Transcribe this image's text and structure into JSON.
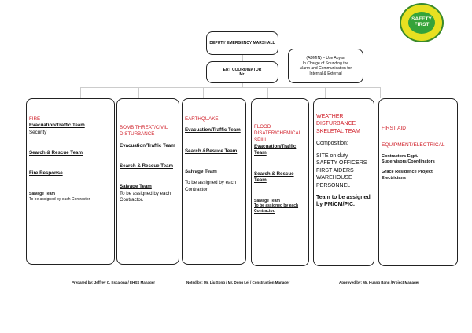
{
  "logo": {
    "text": "SAFETY FIRST",
    "ring": "Your First Priority",
    "colors": {
      "ring": "#e8e021",
      "center": "#35a33a"
    }
  },
  "top": {
    "deputy": "DEPUTY EMERGENCY MARSHALL",
    "ert_title": "ERT COORDINATOR",
    "ert_name": "Mr.",
    "admin": [
      "(ADMIN) – Use Abyan",
      "In Charge of Sounding the",
      "Alarm and Communication for",
      "Internal & External"
    ]
  },
  "accent": "#d0202a",
  "columns": [
    {
      "title": "FIRE",
      "items": [
        "Evacuation/Traffic Team",
        "Security",
        "Search & Rescue Team",
        "Fire Response",
        "Salvage Team",
        "To be assigned by each Contractor"
      ]
    },
    {
      "title": "BOMB THREAT/CIVIL DISTURBANCE",
      "items": [
        "Evacuation/Traffic Team",
        "Search & Rescue Team",
        "Salvage Team",
        "To be assigned by each Contractor."
      ]
    },
    {
      "title": "EARTHQUAKE",
      "items": [
        "Evacuation/Traffic Team",
        "Search &Resuce Team",
        "Salvage Team",
        "To be assigned by each Contractor."
      ]
    },
    {
      "title": "FLOOD DISATER/CHEMICAL SPILL",
      "items": [
        "Evacuation/Traffic Team",
        "Search & Rescue Team",
        "Salvage Team",
        "To be assigned by each Contractor."
      ]
    },
    {
      "title": "WEATHER DISTURBANCE SKELETAL TEAM",
      "items": [
        "Composition:",
        "SITE on duty",
        "SAFETY OFFICERS",
        "FIRST AIDERS",
        "WAREHOUSE",
        "PERSONNEL",
        "Team to be assigned by PM/CM/PIC."
      ]
    },
    {
      "title": "FIRST AID",
      "items": [
        "EQUIPMENT/ELECTRICAL",
        "Contractors Eqpt. Supervisors/Coordinators",
        "Grace Residence Project Electricians"
      ]
    }
  ],
  "footer": {
    "prepared": "Prepared by:  Jeffrey C. Escalona / EHSS Manager",
    "noted": "Noted by: Mr. Liu Song / Mr. Dong Lei / Construction Manager",
    "approved": "Approved by: Mr. Huang Bang /Project Manager"
  }
}
